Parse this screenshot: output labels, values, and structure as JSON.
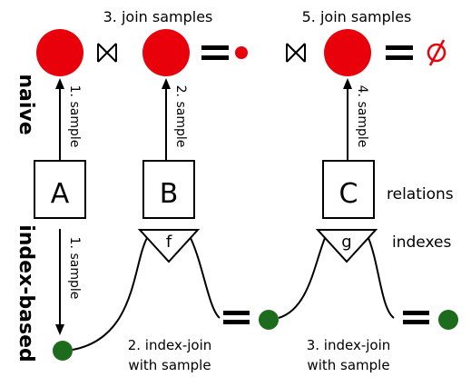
{
  "colors": {
    "red": "#e8000b",
    "green": "#1d6b1d",
    "black": "#000000"
  },
  "side_labels": {
    "naive": "naive",
    "index_based": "index-based"
  },
  "steps": {
    "join_3": "3. join samples",
    "join_5": "5. join samples",
    "sample_1_top": "1. sample",
    "sample_2": "2. sample",
    "sample_4": "4. sample",
    "sample_1_bottom": "1. sample",
    "index_join_2_line1": "2. index-join",
    "index_join_2_line2": "with sample",
    "index_join_3_line1": "3. index-join",
    "index_join_3_line2": "with sample"
  },
  "relations": {
    "a": "A",
    "b": "B",
    "c": "C",
    "label": "relations"
  },
  "indexes": {
    "f": "f",
    "g": "g",
    "label": "indexes"
  },
  "symbols": {
    "join": "⋈",
    "empty_set": "∅"
  }
}
